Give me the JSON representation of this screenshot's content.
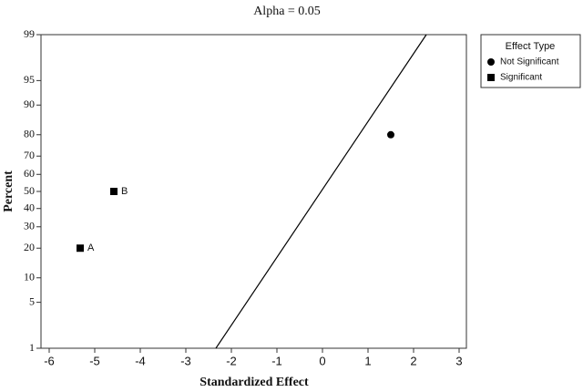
{
  "chart_data": {
    "type": "scatter",
    "title": "Alpha = 0.05",
    "x_label": "Standardized Effect",
    "y_label": "Percent",
    "yscale": "probability",
    "xlim": [
      -6.18,
      3.16
    ],
    "xticks": [
      -6,
      -5,
      -4,
      -3,
      -2,
      -1,
      0,
      1,
      2,
      3
    ],
    "ylim": [
      1,
      99
    ],
    "yticks": [
      1,
      5,
      10,
      20,
      30,
      40,
      50,
      60,
      70,
      80,
      90,
      95,
      99
    ],
    "legend_title": "Effect Type",
    "legend": "outside-right",
    "series": [
      {
        "name": "Not Significant",
        "color": "#000000",
        "marker": "circle",
        "x": [
          1.5
        ],
        "values": [
          80
        ]
      },
      {
        "name": "Significant",
        "color": "#000000",
        "marker": "square",
        "x": [
          -5.32,
          -4.58
        ],
        "values": [
          20,
          50
        ],
        "point_labels": [
          "A",
          "B"
        ]
      }
    ],
    "reference_line": {
      "color": "#000000",
      "x": [
        -2.34,
        2.28
      ],
      "values": [
        1,
        99
      ]
    }
  }
}
